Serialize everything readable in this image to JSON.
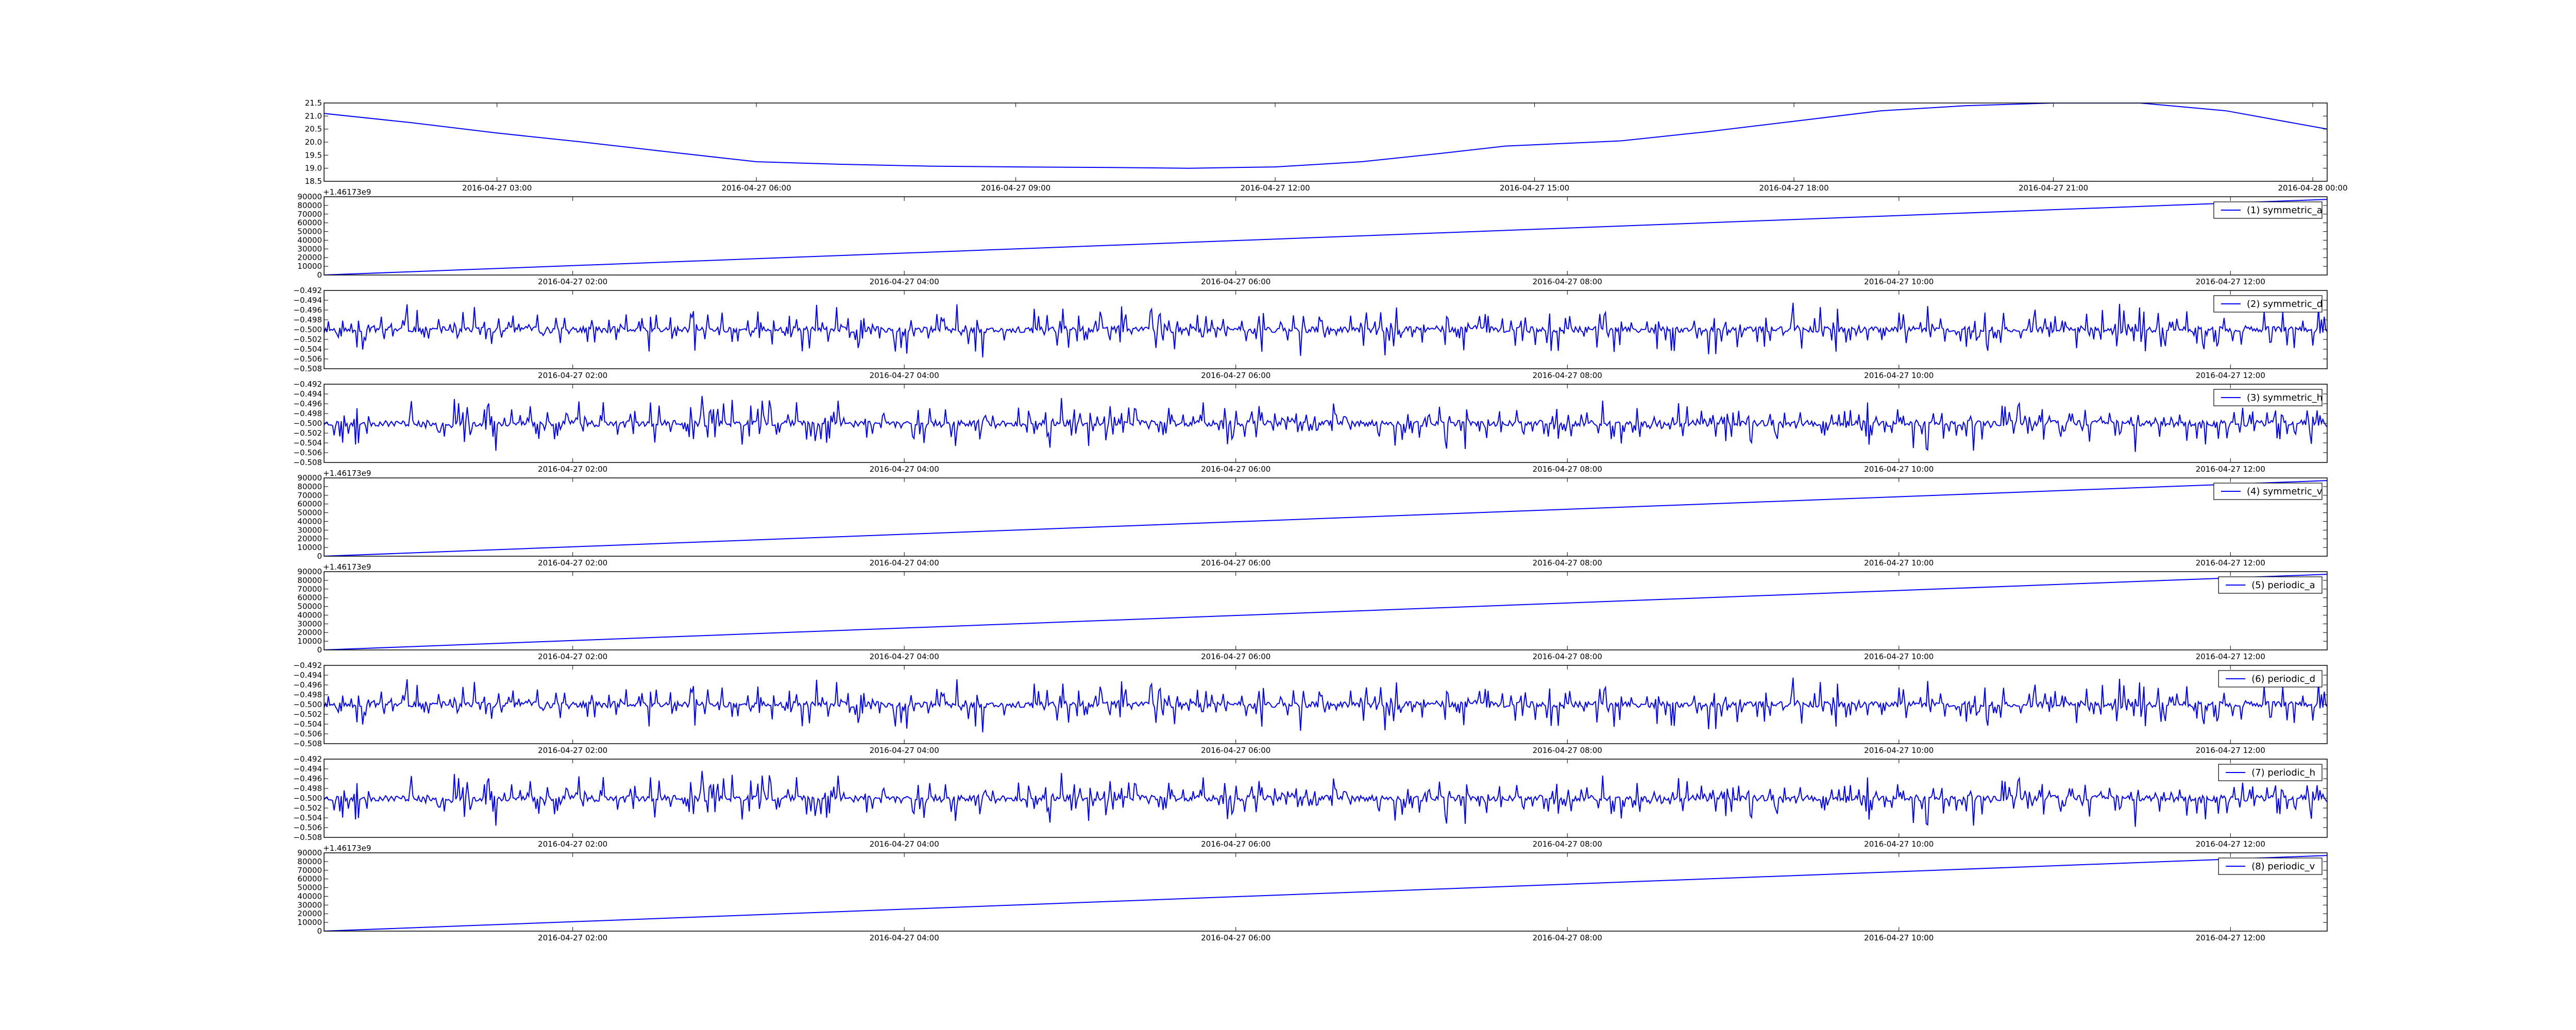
{
  "chart_data": [
    {
      "type": "line",
      "x_type": "datetime",
      "xlim": [
        "2016-04-27 01:00",
        "2016-04-28 00:10"
      ],
      "xticks": [
        "2016-04-27 03:00",
        "2016-04-27 06:00",
        "2016-04-27 09:00",
        "2016-04-27 12:00",
        "2016-04-27 15:00",
        "2016-04-27 18:00",
        "2016-04-27 21:00",
        "2016-04-28 00:00"
      ],
      "ylim": [
        18.5,
        21.5
      ],
      "yticks": [
        "18.5",
        "19.0",
        "19.5",
        "20.0",
        "20.5",
        "21.0",
        "21.5"
      ],
      "grid": false,
      "legend": null,
      "series": [
        {
          "color": "#0000ff",
          "x": [
            "2016-04-27 01:00",
            "2016-04-27 02:00",
            "2016-04-27 03:00",
            "2016-04-27 04:00",
            "2016-04-27 05:00",
            "2016-04-27 06:00",
            "2016-04-27 07:00",
            "2016-04-27 08:00",
            "2016-04-27 09:00",
            "2016-04-27 10:00",
            "2016-04-27 11:00",
            "2016-04-27 12:00",
            "2016-04-27 13:00",
            "2016-04-27 14:00",
            "2016-04-27 14:40",
            "2016-04-27 15:00",
            "2016-04-27 16:00",
            "2016-04-27 17:00",
            "2016-04-27 18:00",
            "2016-04-27 19:00",
            "2016-04-27 20:00",
            "2016-04-27 21:00",
            "2016-04-27 22:00",
            "2016-04-27 23:00",
            "2016-04-28 00:10"
          ],
          "y": [
            21.1,
            20.75,
            20.35,
            20.0,
            19.62,
            19.25,
            19.15,
            19.08,
            19.05,
            19.03,
            19.0,
            19.05,
            19.25,
            19.6,
            19.85,
            19.9,
            20.05,
            20.4,
            20.8,
            21.2,
            21.4,
            21.5,
            21.5,
            21.2,
            20.5
          ]
        }
      ]
    },
    {
      "type": "line",
      "x_type": "datetime",
      "offset_label": "+1.46173e9",
      "xlim": [
        "2016-04-27 00:30",
        "2016-04-27 12:35"
      ],
      "xticks": [
        "2016-04-27 02:00",
        "2016-04-27 04:00",
        "2016-04-27 06:00",
        "2016-04-27 08:00",
        "2016-04-27 10:00",
        "2016-04-27 12:00"
      ],
      "ylim": [
        0,
        90000
      ],
      "yticks": [
        "0",
        "10000",
        "20000",
        "30000",
        "40000",
        "50000",
        "60000",
        "70000",
        "80000",
        "90000"
      ],
      "grid": false,
      "legend": "top-right",
      "series": [
        {
          "name": "(1) symmetric_a",
          "color": "#0000ff",
          "x": [
            "2016-04-27 00:30",
            "2016-04-27 12:35"
          ],
          "y": [
            0,
            87000
          ]
        }
      ]
    },
    {
      "type": "line",
      "x_type": "datetime",
      "xlim": [
        "2016-04-27 00:30",
        "2016-04-27 12:35"
      ],
      "xticks": [
        "2016-04-27 02:00",
        "2016-04-27 04:00",
        "2016-04-27 06:00",
        "2016-04-27 08:00",
        "2016-04-27 10:00",
        "2016-04-27 12:00"
      ],
      "ylim": [
        -0.508,
        -0.492
      ],
      "yticks": [
        "−0.508",
        "−0.506",
        "−0.504",
        "−0.502",
        "−0.500",
        "−0.498",
        "−0.496",
        "−0.494",
        "−0.492"
      ],
      "grid": false,
      "legend": "top-right",
      "series": [
        {
          "name": "(2) symmetric_d",
          "color": "#0000ff",
          "baseline": -0.5,
          "amplitude": 0.006,
          "samples": 1400,
          "seed": 11,
          "note_style": "noise"
        }
      ]
    },
    {
      "type": "line",
      "x_type": "datetime",
      "xlim": [
        "2016-04-27 00:30",
        "2016-04-27 12:35"
      ],
      "xticks": [
        "2016-04-27 02:00",
        "2016-04-27 04:00",
        "2016-04-27 06:00",
        "2016-04-27 08:00",
        "2016-04-27 10:00",
        "2016-04-27 12:00"
      ],
      "ylim": [
        -0.508,
        -0.492
      ],
      "yticks": [
        "−0.508",
        "−0.506",
        "−0.504",
        "−0.502",
        "−0.500",
        "−0.498",
        "−0.496",
        "−0.494",
        "−0.492"
      ],
      "grid": false,
      "legend": "top-right",
      "series": [
        {
          "name": "(3) symmetric_h",
          "color": "#0000ff",
          "baseline": -0.5,
          "amplitude": 0.006,
          "samples": 1400,
          "seed": 23
        }
      ]
    },
    {
      "type": "line",
      "x_type": "datetime",
      "offset_label": "+1.46173e9",
      "xlim": [
        "2016-04-27 00:30",
        "2016-04-27 12:35"
      ],
      "xticks": [
        "2016-04-27 02:00",
        "2016-04-27 04:00",
        "2016-04-27 06:00",
        "2016-04-27 08:00",
        "2016-04-27 10:00",
        "2016-04-27 12:00"
      ],
      "ylim": [
        0,
        90000
      ],
      "yticks": [
        "0",
        "10000",
        "20000",
        "30000",
        "40000",
        "50000",
        "60000",
        "70000",
        "80000",
        "90000"
      ],
      "grid": false,
      "legend": "top-right",
      "series": [
        {
          "name": "(4) symmetric_v",
          "color": "#0000ff",
          "x": [
            "2016-04-27 00:30",
            "2016-04-27 12:35"
          ],
          "y": [
            0,
            87000
          ]
        }
      ]
    },
    {
      "type": "line",
      "x_type": "datetime",
      "offset_label": "+1.46173e9",
      "xlim": [
        "2016-04-27 00:30",
        "2016-04-27 12:35"
      ],
      "xticks": [
        "2016-04-27 02:00",
        "2016-04-27 04:00",
        "2016-04-27 06:00",
        "2016-04-27 08:00",
        "2016-04-27 10:00",
        "2016-04-27 12:00"
      ],
      "ylim": [
        0,
        90000
      ],
      "yticks": [
        "0",
        "10000",
        "20000",
        "30000",
        "40000",
        "50000",
        "60000",
        "70000",
        "80000",
        "90000"
      ],
      "grid": false,
      "legend": "top-right",
      "series": [
        {
          "name": "(5) periodic_a",
          "color": "#0000ff",
          "x": [
            "2016-04-27 00:30",
            "2016-04-27 12:35"
          ],
          "y": [
            0,
            87000
          ]
        }
      ]
    },
    {
      "type": "line",
      "x_type": "datetime",
      "xlim": [
        "2016-04-27 00:30",
        "2016-04-27 12:35"
      ],
      "xticks": [
        "2016-04-27 02:00",
        "2016-04-27 04:00",
        "2016-04-27 06:00",
        "2016-04-27 08:00",
        "2016-04-27 10:00",
        "2016-04-27 12:00"
      ],
      "ylim": [
        -0.508,
        -0.492
      ],
      "yticks": [
        "−0.508",
        "−0.506",
        "−0.504",
        "−0.502",
        "−0.500",
        "−0.498",
        "−0.496",
        "−0.494",
        "−0.492"
      ],
      "grid": false,
      "legend": "top-right",
      "series": [
        {
          "name": "(6) periodic_d",
          "color": "#0000ff",
          "baseline": -0.5,
          "amplitude": 0.006,
          "samples": 1400,
          "seed": 11
        }
      ]
    },
    {
      "type": "line",
      "x_type": "datetime",
      "xlim": [
        "2016-04-27 00:30",
        "2016-04-27 12:35"
      ],
      "xticks": [
        "2016-04-27 02:00",
        "2016-04-27 04:00",
        "2016-04-27 06:00",
        "2016-04-27 08:00",
        "2016-04-27 10:00",
        "2016-04-27 12:00"
      ],
      "ylim": [
        -0.508,
        -0.492
      ],
      "yticks": [
        "−0.508",
        "−0.506",
        "−0.504",
        "−0.502",
        "−0.500",
        "−0.498",
        "−0.496",
        "−0.494",
        "−0.492"
      ],
      "grid": false,
      "legend": "top-right",
      "series": [
        {
          "name": "(7) periodic_h",
          "color": "#0000ff",
          "baseline": -0.5,
          "amplitude": 0.006,
          "samples": 1400,
          "seed": 23
        }
      ]
    },
    {
      "type": "line",
      "x_type": "datetime",
      "offset_label": "+1.46173e9",
      "xlim": [
        "2016-04-27 00:30",
        "2016-04-27 12:35"
      ],
      "xticks": [
        "2016-04-27 02:00",
        "2016-04-27 04:00",
        "2016-04-27 06:00",
        "2016-04-27 08:00",
        "2016-04-27 10:00",
        "2016-04-27 12:00"
      ],
      "ylim": [
        0,
        90000
      ],
      "yticks": [
        "0",
        "10000",
        "20000",
        "30000",
        "40000",
        "50000",
        "60000",
        "70000",
        "80000",
        "90000"
      ],
      "grid": false,
      "legend": "top-right",
      "series": [
        {
          "name": "(8) periodic_v",
          "color": "#0000ff",
          "x": [
            "2016-04-27 00:30",
            "2016-04-27 12:35"
          ],
          "y": [
            0,
            87000
          ]
        }
      ]
    }
  ]
}
